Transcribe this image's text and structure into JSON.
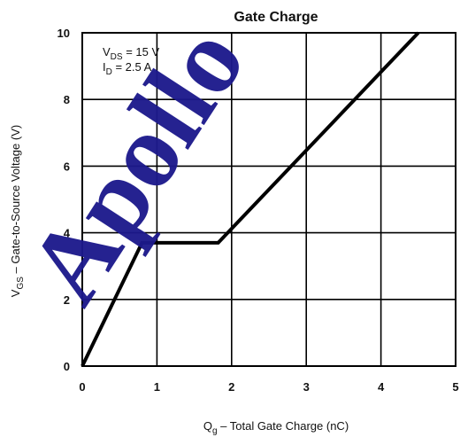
{
  "chart_data": {
    "type": "line",
    "title": "Gate Charge",
    "xlabel": "Q g – Total Gate Charge (nC)",
    "xlabel_main": "Q",
    "xlabel_sub": "g",
    "xlabel_rest": " –  Total Gate Charge (nC)",
    "ylabel_main": "V",
    "ylabel_sub": "GS",
    "ylabel_rest": " –  Gate-to-Source Voltage (V)",
    "xlim": [
      0,
      5
    ],
    "ylim": [
      0,
      10
    ],
    "xticks": [
      "0",
      "1",
      "2",
      "3",
      "4",
      "5"
    ],
    "yticks": [
      "0",
      "2",
      "4",
      "6",
      "8",
      "10"
    ],
    "grid": true,
    "series": [
      {
        "x": [
          0,
          0.8,
          1.82,
          4.5
        ],
        "y": [
          0,
          3.7,
          3.7,
          10
        ]
      }
    ],
    "annotation": {
      "line1_main": "V",
      "line1_sub": "DS",
      "line1_rest": " = 15 V",
      "line2_main": "I",
      "line2_sub": "D",
      "line2_rest": " = 2.5 A"
    }
  },
  "watermark": {
    "text": "Apollo",
    "color": "#1d1a8c"
  }
}
